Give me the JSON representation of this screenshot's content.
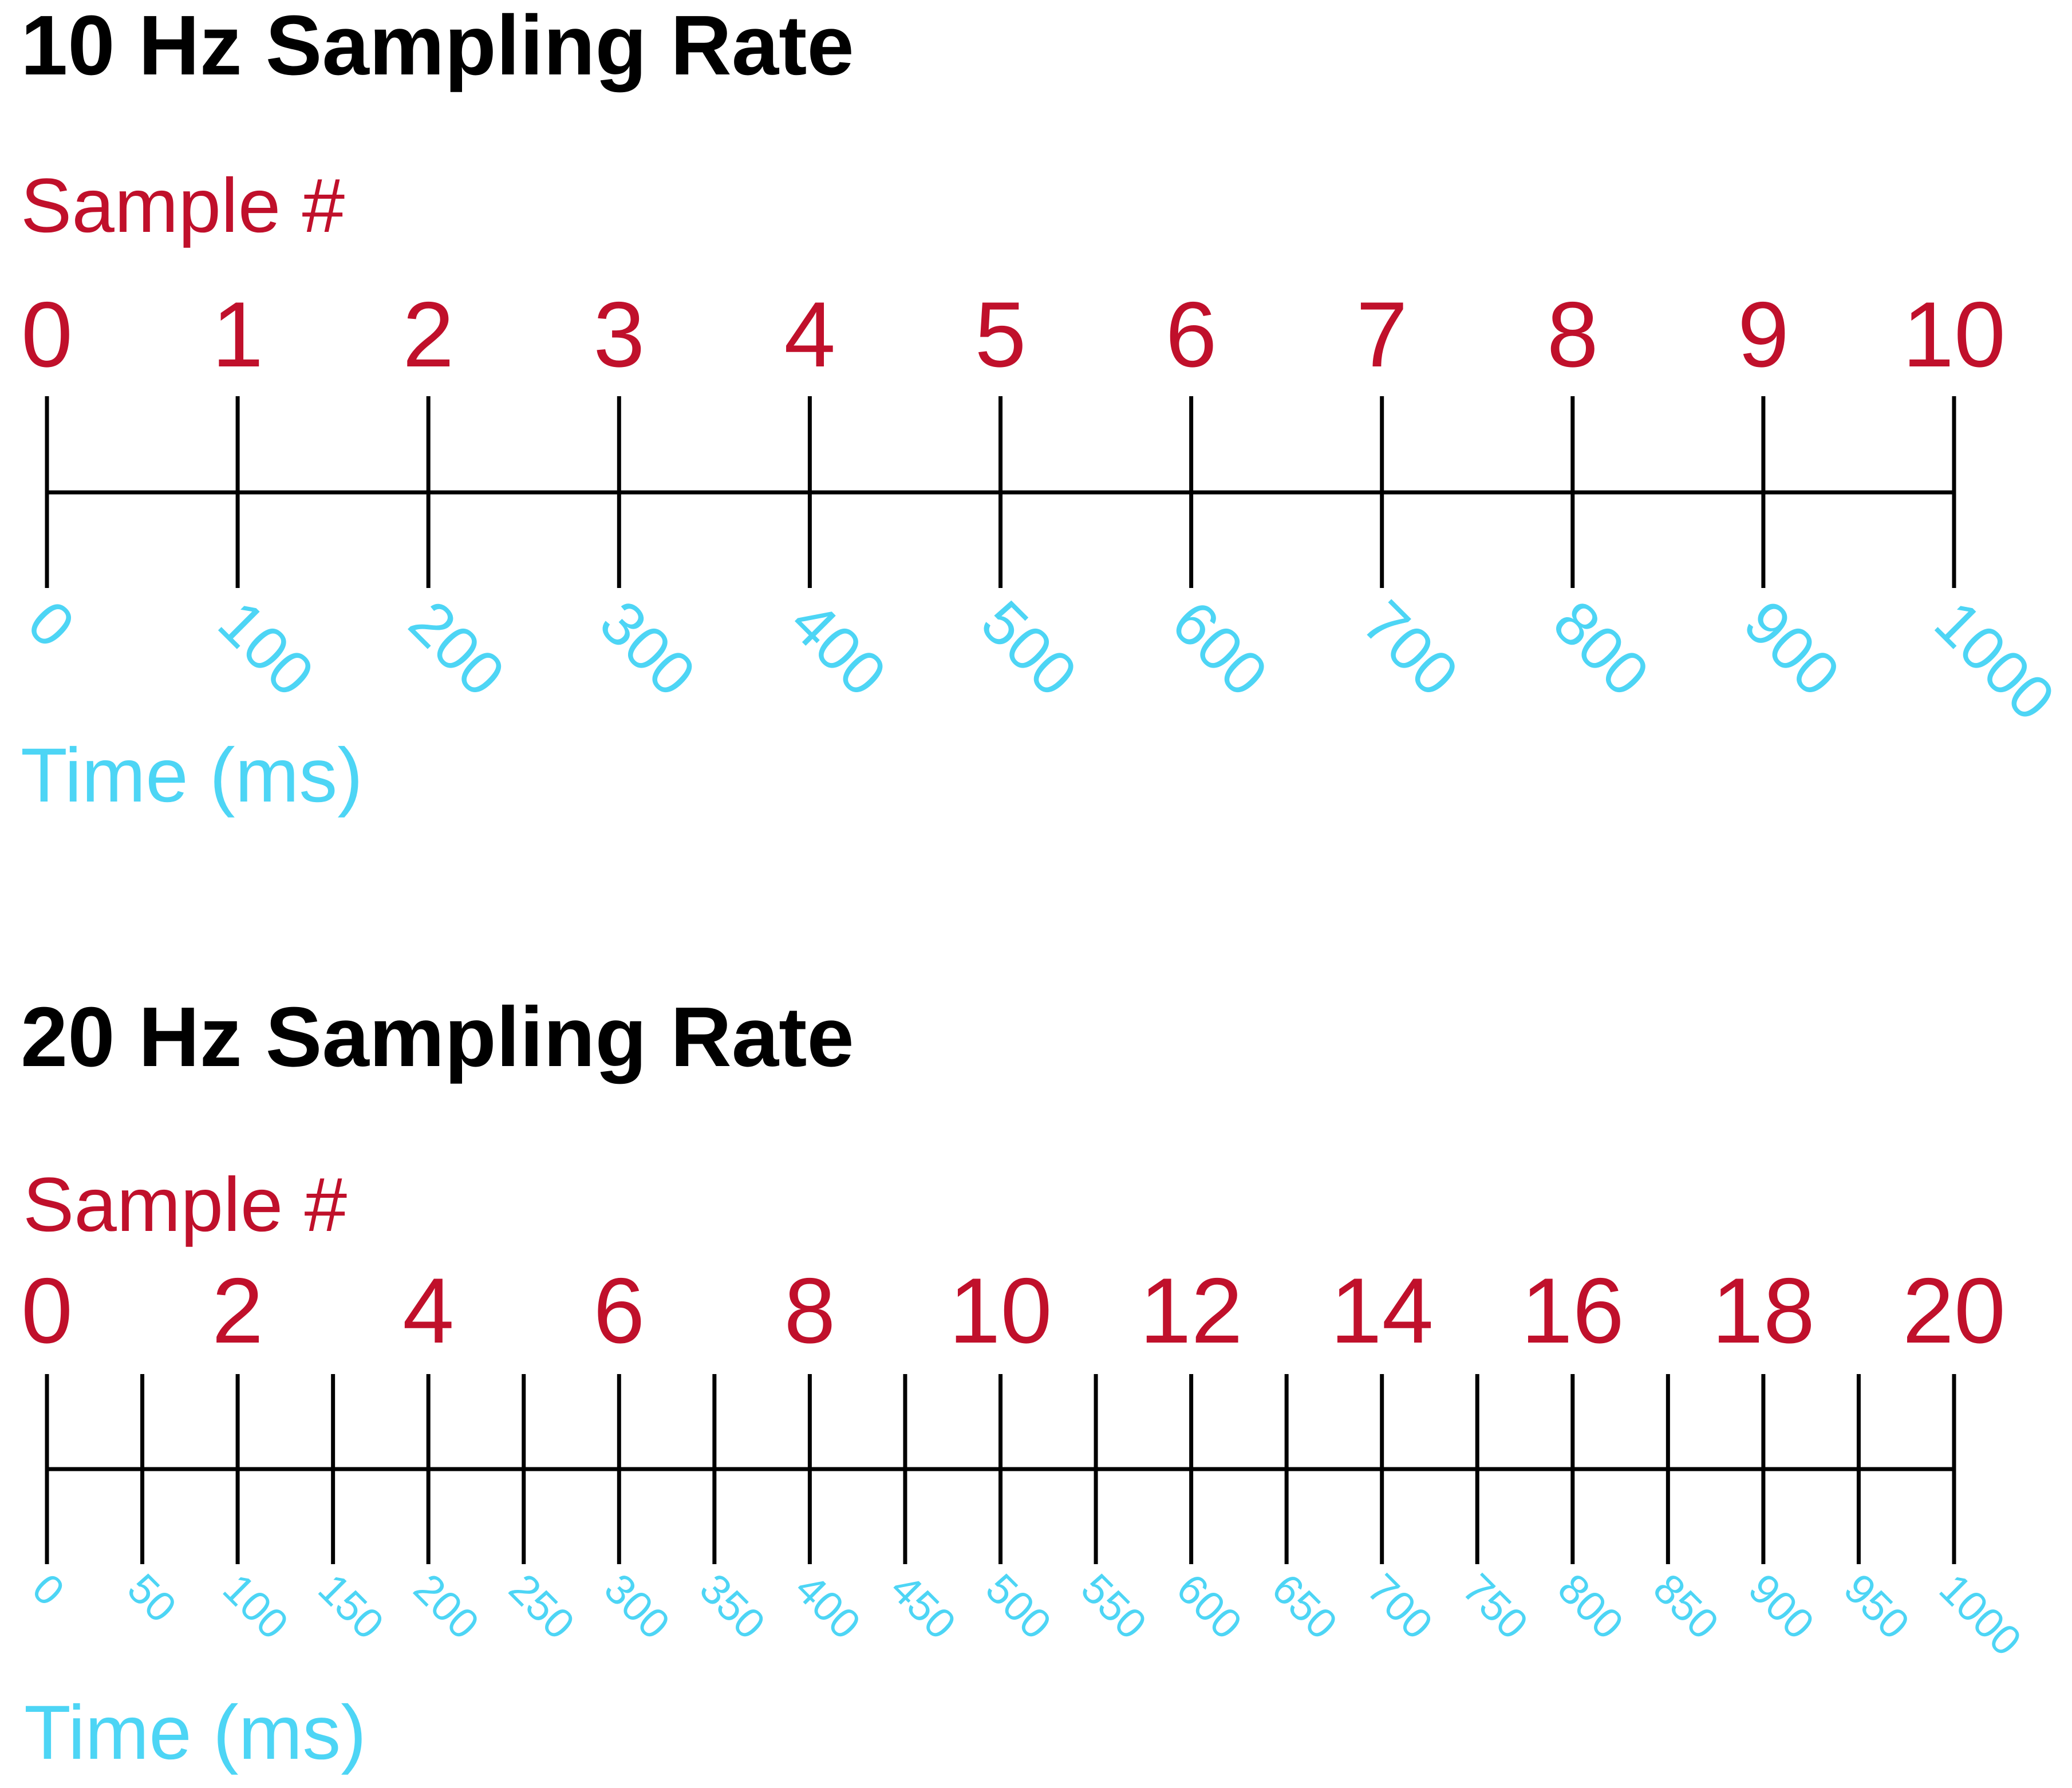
{
  "colors": {
    "title": "#000000",
    "sample": "#c0102b",
    "time": "#4dd5f5",
    "axis": "#000000"
  },
  "timelines": [
    {
      "title": "10 Hz Sampling Rate",
      "sample_axis_label": "Sample #",
      "time_axis_label": "Time (ms)",
      "sample_labels": [
        "0",
        "1",
        "2",
        "3",
        "4",
        "5",
        "6",
        "7",
        "8",
        "9",
        "10"
      ],
      "time_labels": [
        "0",
        "100",
        "200",
        "300",
        "400",
        "500",
        "600",
        "700",
        "800",
        "900",
        "1000"
      ],
      "tick_count": 11
    },
    {
      "title": "20 Hz Sampling Rate",
      "sample_axis_label": "Sample #",
      "time_axis_label": "Time (ms)",
      "sample_labels": [
        "0",
        "2",
        "4",
        "6",
        "8",
        "10",
        "12",
        "14",
        "16",
        "18",
        "20"
      ],
      "time_labels": [
        "0",
        "50",
        "100",
        "150",
        "200",
        "250",
        "300",
        "350",
        "400",
        "450",
        "500",
        "550",
        "600",
        "650",
        "700",
        "750",
        "800",
        "850",
        "900",
        "950",
        "1000"
      ],
      "tick_count": 21
    }
  ]
}
